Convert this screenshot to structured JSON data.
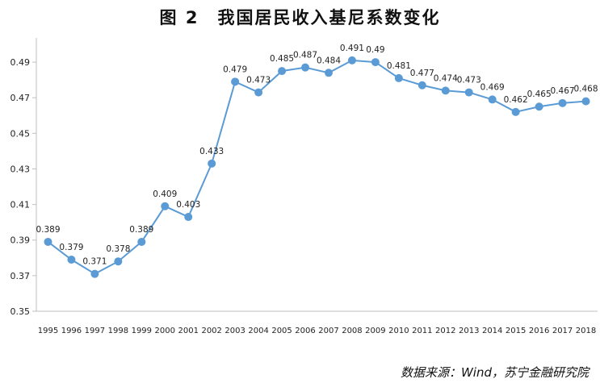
{
  "title": "图 2　我国居民收入基尼系数变化",
  "source": "数据来源：Wind，苏宁金融研究院",
  "colors": {
    "line": "#5b9bd5",
    "axis": "#bfbfbf"
  },
  "chart_data": {
    "type": "line",
    "title": "图 2　我国居民收入基尼系数变化",
    "xlabel": "",
    "ylabel": "",
    "ylim": [
      0.35,
      0.5
    ],
    "yticks": [
      0.35,
      0.37,
      0.39,
      0.41,
      0.43,
      0.45,
      0.47,
      0.49
    ],
    "ytick_labels": [
      "0.35",
      "0.37",
      "0.39",
      "0.41",
      "0.43",
      "0.45",
      "0.47",
      "0.49"
    ],
    "grid": false,
    "categories": [
      "1995",
      "1996",
      "1997",
      "1998",
      "1999",
      "2000",
      "2001",
      "2002",
      "2003",
      "2004",
      "2005",
      "2006",
      "2007",
      "2008",
      "2009",
      "2010",
      "2011",
      "2012",
      "2013",
      "2014",
      "2015",
      "2016",
      "2017",
      "2018"
    ],
    "series": [
      {
        "values": [
          0.389,
          0.379,
          0.371,
          0.378,
          0.389,
          0.409,
          0.403,
          0.433,
          0.479,
          0.473,
          0.485,
          0.487,
          0.484,
          0.491,
          0.49,
          0.481,
          0.477,
          0.474,
          0.473,
          0.469,
          0.462,
          0.465,
          0.467,
          0.468
        ],
        "labels": [
          "0.389",
          "0.379",
          "0.371",
          "0.378",
          "0.389",
          "0.409",
          "0.403",
          "0.433",
          "0.479",
          "0.473",
          "0.485",
          "0.487",
          "0.484",
          "0.491",
          "0.49",
          "0.481",
          "0.477",
          "0.474",
          "0.473",
          "0.469",
          "0.462",
          "0.465",
          "0.467",
          "0.468"
        ]
      }
    ]
  }
}
